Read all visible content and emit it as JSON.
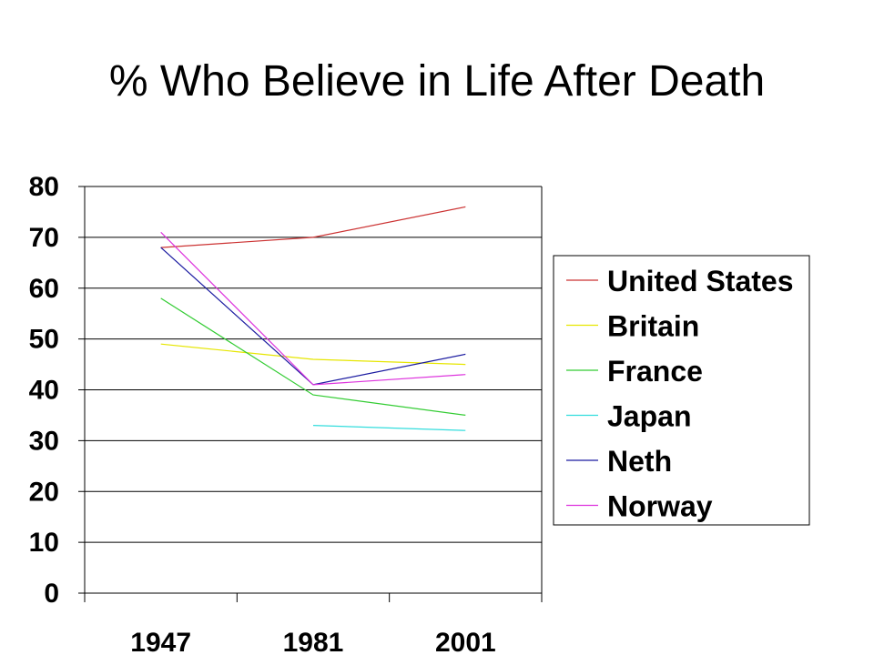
{
  "chart_data": {
    "type": "line",
    "title": "% Who Believe in Life After Death",
    "xlabel": "",
    "ylabel": "",
    "categories": [
      "1947",
      "1981",
      "2001"
    ],
    "ylim": [
      0,
      80
    ],
    "yticks": [
      0,
      10,
      20,
      30,
      40,
      50,
      60,
      70,
      80
    ],
    "grid": true,
    "legend_position": "right",
    "series": [
      {
        "name": "United States",
        "color": "#cc3333",
        "values": [
          68,
          70,
          76
        ]
      },
      {
        "name": "Britain",
        "color": "#e6e600",
        "values": [
          49,
          46,
          45
        ]
      },
      {
        "name": "France",
        "color": "#33cc33",
        "values": [
          58,
          39,
          35
        ]
      },
      {
        "name": "Japan",
        "color": "#33dddd",
        "values": [
          null,
          33,
          32
        ]
      },
      {
        "name": "Neth",
        "color": "#1a1aa0",
        "values": [
          68,
          41,
          47
        ]
      },
      {
        "name": "Norway",
        "color": "#dd33dd",
        "values": [
          71,
          41,
          43
        ]
      }
    ]
  }
}
